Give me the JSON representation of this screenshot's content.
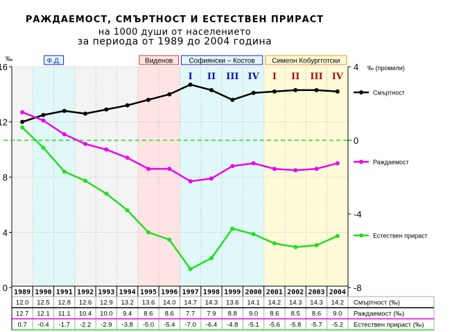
{
  "chart_data": {
    "type": "line",
    "title_lines": [
      "РАЖДАЕМОСТ, СМЪРТНОСТ И ЕСТЕСТВЕН ПРИРАСТ",
      "на 1000 души от населението",
      "за периода от 1989 до 2004 година"
    ],
    "left_axis_unit": "‰",
    "right_axis_unit": "‰ (промили)",
    "left_ylim": [
      0,
      16
    ],
    "right_ylim": [
      -8,
      4
    ],
    "left_ticks": [
      0,
      4,
      8,
      12,
      16
    ],
    "right_ticks": [
      -8,
      -4,
      0,
      4
    ],
    "categories": [
      "1989",
      "1990",
      "1991",
      "1992",
      "1993",
      "1994",
      "1995",
      "1996",
      "1997",
      "1998",
      "1999",
      "2000",
      "2001",
      "2002",
      "2003",
      "2004"
    ],
    "series": [
      {
        "key": "mortality",
        "name": "Смъртност",
        "axis": "left",
        "color": "#000000",
        "values": [
          12.0,
          12.5,
          12.8,
          12.6,
          12.9,
          13.2,
          13.6,
          14.0,
          14.7,
          14.3,
          13.6,
          14.1,
          14.2,
          14.3,
          14.3,
          14.2
        ]
      },
      {
        "key": "birth",
        "name": "Раждаемост",
        "axis": "left",
        "color": "#ee00ee",
        "values": [
          12.7,
          12.1,
          11.1,
          10.4,
          10.0,
          9.4,
          8.6,
          8.6,
          7.7,
          7.9,
          8.8,
          9.0,
          8.6,
          8.5,
          8.6,
          9.0
        ]
      },
      {
        "key": "natural",
        "name": "Естествен прираст",
        "axis": "right",
        "color": "#22dd22",
        "values": [
          0.7,
          -0.4,
          -1.7,
          -2.2,
          -2.9,
          -3.8,
          -5.0,
          -5.4,
          -7.0,
          -6.4,
          -4.8,
          -5.1,
          -5.6,
          -5.8,
          -5.7,
          -5.2
        ]
      }
    ],
    "table": {
      "rows": [
        {
          "series": "mortality",
          "label": "Смъртност (‰)",
          "values": [
            "12.0",
            "12.5",
            "12.8",
            "12.6",
            "12.9",
            "13.2",
            "13.6",
            "14.0",
            "14.7",
            "14.3",
            "13.6",
            "14.1",
            "14.2",
            "14.3",
            "14.3",
            "14.2"
          ]
        },
        {
          "series": "birth",
          "label": "Раждаемост (‰)",
          "values": [
            "12.7",
            "12.1",
            "11.1",
            "10.4",
            "10.0",
            "9.4",
            "8.6",
            "8.6",
            "7.7",
            "7.9",
            "8.8",
            "9.0",
            "8.6",
            "8.5",
            "8.6",
            "9.0"
          ]
        },
        {
          "series": "natural",
          "label": "Естествен прираст (‰)",
          "values": [
            "0.7",
            "-0.4",
            "-1.7",
            "-2.2",
            "-2.9",
            "-3.8",
            "-5.0",
            "-5.4",
            "-7.0",
            "-6.4",
            "-4.8",
            "-5.1",
            "-5.6",
            "-5.8",
            "-5.7",
            "-5.2"
          ]
        }
      ]
    },
    "periods": [
      {
        "label": "Ф.Д.",
        "from_year": "1990",
        "to_year": "1991",
        "color": "#e0f8f8",
        "border": "#2222cc",
        "text_color": "#2222cc"
      },
      {
        "label": "Виденов",
        "from_year": "1995",
        "to_year": "1996",
        "color": "#ffe4e4",
        "border": "#dd3333",
        "text_color": "#000000"
      },
      {
        "label": "Софиянски – Костов",
        "from_year": "1997",
        "to_year": "2000",
        "color": "#e0f8f8",
        "border": "#2222cc",
        "text_color": "#000000"
      },
      {
        "label": "Симеон Кобургготски",
        "from_year": "2001",
        "to_year": "2004",
        "color": "#fffbd8",
        "border": "#ee9900",
        "text_color": "#000000"
      }
    ],
    "quarter_marks": [
      {
        "label": "I",
        "year": "1997",
        "color": "#1111bb"
      },
      {
        "label": "II",
        "year": "1998",
        "color": "#1111bb"
      },
      {
        "label": "III",
        "year": "1999",
        "color": "#1111bb"
      },
      {
        "label": "IV",
        "year": "2000",
        "color": "#1111bb"
      },
      {
        "label": "I",
        "year": "2001",
        "color": "#aa1111"
      },
      {
        "label": "II",
        "year": "2002",
        "color": "#aa1111"
      },
      {
        "label": "III",
        "year": "2003",
        "color": "#aa1111"
      },
      {
        "label": "IV",
        "year": "2004",
        "color": "#aa1111"
      }
    ],
    "zero_line_color": "#22dd22",
    "grid": true
  }
}
